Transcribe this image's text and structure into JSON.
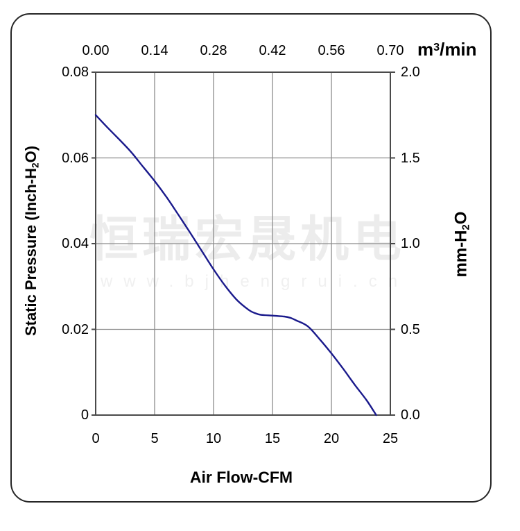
{
  "watermark": {
    "cjk_text": "恒瑞宏晟机电",
    "url_text": "www.bjhengrui.cn",
    "cjk_color": "#ececec",
    "url_color": "#f0f0f0"
  },
  "chart_data": {
    "type": "line",
    "title": "",
    "grid": true,
    "legend": "none",
    "axes": {
      "bottom": {
        "title": "Air Flow-CFM",
        "ticks": [
          "0",
          "5",
          "10",
          "15",
          "20",
          "25"
        ],
        "range": [
          0,
          25
        ]
      },
      "top": {
        "unit_pre": "m",
        "unit_sup": "3",
        "unit_post": "/min",
        "ticks": [
          "0.00",
          "0.14",
          "0.28",
          "0.42",
          "0.56",
          "0.70"
        ],
        "range": [
          0.0,
          0.7
        ]
      },
      "left": {
        "title_pre": "Static Pressure (Inch-H",
        "title_sub": "2",
        "title_post": "O)",
        "ticks": [
          "0.08",
          "0.06",
          "0.04",
          "0.02",
          "0"
        ],
        "range": [
          0,
          0.08
        ]
      },
      "right": {
        "title_pre": "mm-H",
        "title_sub": "2",
        "title_post": "O",
        "ticks": [
          "2.0",
          "1.5",
          "1.0",
          "0.5",
          "0.0"
        ],
        "range": [
          0,
          2.0
        ]
      }
    },
    "colors": {
      "curve": "#1a1a8c",
      "gridline": "#8c8c8c",
      "frame": "#4a4a4a",
      "text": "#000000"
    },
    "series": [
      {
        "name": "static-pressure-vs-airflow",
        "x_unit": "CFM",
        "y_unit": "Inch-H2O",
        "points": [
          [
            0,
            0.07
          ],
          [
            1,
            0.0671
          ],
          [
            2,
            0.0643
          ],
          [
            3,
            0.0614
          ],
          [
            4,
            0.058
          ],
          [
            5,
            0.0546
          ],
          [
            6,
            0.0509
          ],
          [
            7,
            0.0468
          ],
          [
            8,
            0.0426
          ],
          [
            9,
            0.0383
          ],
          [
            10,
            0.034
          ],
          [
            11,
            0.0301
          ],
          [
            12,
            0.0268
          ],
          [
            13,
            0.0245
          ],
          [
            13.5,
            0.0238
          ],
          [
            14,
            0.0234
          ],
          [
            15,
            0.0232
          ],
          [
            16,
            0.023
          ],
          [
            16.5,
            0.0227
          ],
          [
            17,
            0.0221
          ],
          [
            18,
            0.0207
          ],
          [
            19,
            0.0177
          ],
          [
            20,
            0.0144
          ],
          [
            21,
            0.0108
          ],
          [
            22,
            0.007
          ],
          [
            23,
            0.0034
          ],
          [
            23.8,
            0.0
          ]
        ]
      }
    ]
  }
}
